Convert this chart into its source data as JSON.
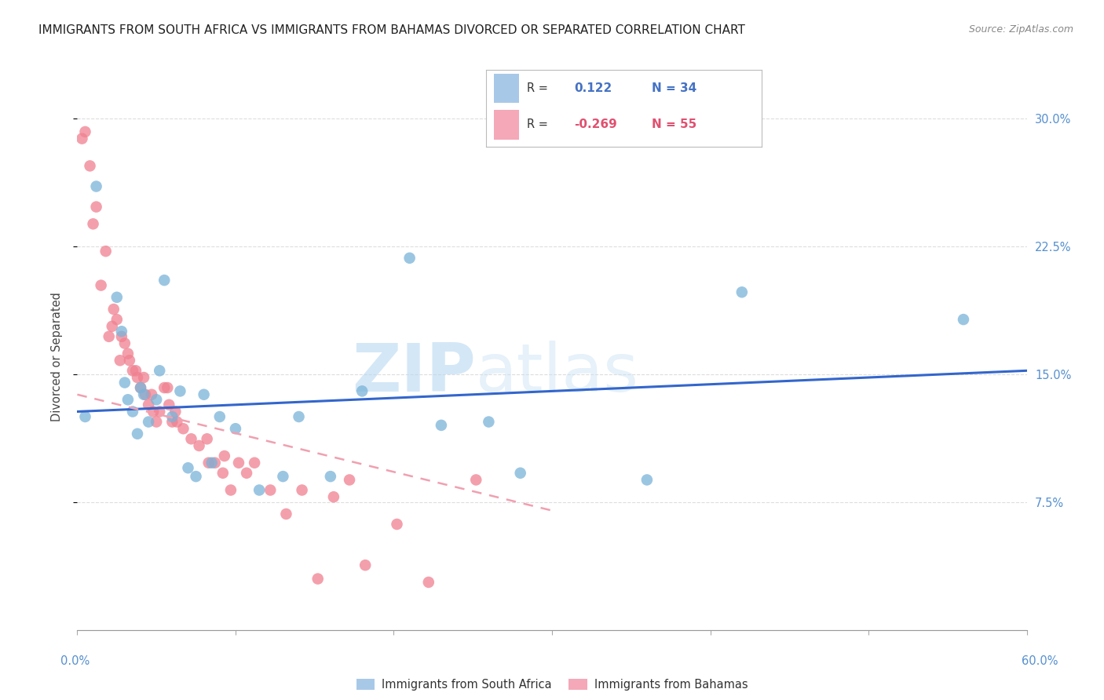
{
  "title": "IMMIGRANTS FROM SOUTH AFRICA VS IMMIGRANTS FROM BAHAMAS DIVORCED OR SEPARATED CORRELATION CHART",
  "source": "Source: ZipAtlas.com",
  "ylabel": "Divorced or Separated",
  "south_africa_color": "#7ab3d9",
  "bahamas_color": "#f08090",
  "south_africa_scatter": [
    [
      0.5,
      12.5
    ],
    [
      1.2,
      26.0
    ],
    [
      2.5,
      19.5
    ],
    [
      2.8,
      17.5
    ],
    [
      3.0,
      14.5
    ],
    [
      3.2,
      13.5
    ],
    [
      3.5,
      12.8
    ],
    [
      3.8,
      11.5
    ],
    [
      4.0,
      14.2
    ],
    [
      4.2,
      13.8
    ],
    [
      4.5,
      12.2
    ],
    [
      5.0,
      13.5
    ],
    [
      5.2,
      15.2
    ],
    [
      5.5,
      20.5
    ],
    [
      6.0,
      12.5
    ],
    [
      6.5,
      14.0
    ],
    [
      7.0,
      9.5
    ],
    [
      7.5,
      9.0
    ],
    [
      8.0,
      13.8
    ],
    [
      8.5,
      9.8
    ],
    [
      9.0,
      12.5
    ],
    [
      10.0,
      11.8
    ],
    [
      11.5,
      8.2
    ],
    [
      13.0,
      9.0
    ],
    [
      14.0,
      12.5
    ],
    [
      16.0,
      9.0
    ],
    [
      18.0,
      14.0
    ],
    [
      21.0,
      21.8
    ],
    [
      23.0,
      12.0
    ],
    [
      26.0,
      12.2
    ],
    [
      28.0,
      9.2
    ],
    [
      36.0,
      8.8
    ],
    [
      42.0,
      19.8
    ],
    [
      56.0,
      18.2
    ]
  ],
  "bahamas_scatter": [
    [
      0.3,
      28.8
    ],
    [
      0.5,
      29.2
    ],
    [
      0.8,
      27.2
    ],
    [
      1.0,
      23.8
    ],
    [
      1.2,
      24.8
    ],
    [
      1.5,
      20.2
    ],
    [
      1.8,
      22.2
    ],
    [
      2.0,
      17.2
    ],
    [
      2.2,
      17.8
    ],
    [
      2.3,
      18.8
    ],
    [
      2.5,
      18.2
    ],
    [
      2.7,
      15.8
    ],
    [
      2.8,
      17.2
    ],
    [
      3.0,
      16.8
    ],
    [
      3.2,
      16.2
    ],
    [
      3.3,
      15.8
    ],
    [
      3.5,
      15.2
    ],
    [
      3.7,
      15.2
    ],
    [
      3.8,
      14.8
    ],
    [
      4.0,
      14.2
    ],
    [
      4.2,
      14.8
    ],
    [
      4.3,
      13.8
    ],
    [
      4.5,
      13.2
    ],
    [
      4.7,
      13.8
    ],
    [
      4.8,
      12.8
    ],
    [
      5.0,
      12.2
    ],
    [
      5.2,
      12.8
    ],
    [
      5.5,
      14.2
    ],
    [
      5.7,
      14.2
    ],
    [
      5.8,
      13.2
    ],
    [
      6.0,
      12.2
    ],
    [
      6.2,
      12.8
    ],
    [
      6.3,
      12.2
    ],
    [
      6.7,
      11.8
    ],
    [
      7.2,
      11.2
    ],
    [
      7.7,
      10.8
    ],
    [
      8.2,
      11.2
    ],
    [
      8.3,
      9.8
    ],
    [
      8.7,
      9.8
    ],
    [
      9.2,
      9.2
    ],
    [
      9.3,
      10.2
    ],
    [
      9.7,
      8.2
    ],
    [
      10.2,
      9.8
    ],
    [
      10.7,
      9.2
    ],
    [
      11.2,
      9.8
    ],
    [
      12.2,
      8.2
    ],
    [
      13.2,
      6.8
    ],
    [
      14.2,
      8.2
    ],
    [
      15.2,
      3.0
    ],
    [
      16.2,
      7.8
    ],
    [
      17.2,
      8.8
    ],
    [
      18.2,
      3.8
    ],
    [
      20.2,
      6.2
    ],
    [
      22.2,
      2.8
    ],
    [
      25.2,
      8.8
    ]
  ],
  "sa_trendline": {
    "x_start": 0,
    "x_end": 60,
    "y_start": 12.8,
    "y_end": 15.2
  },
  "bah_trendline": {
    "x_start": 0,
    "x_end": 30,
    "y_start": 13.8,
    "y_end": 7.0
  },
  "watermark_zip": "ZIP",
  "watermark_atlas": "atlas",
  "xlim": [
    0,
    60
  ],
  "ylim": [
    0,
    32
  ],
  "ytick_positions": [
    7.5,
    15.0,
    22.5,
    30.0
  ],
  "xtick_positions": [
    0,
    10,
    20,
    30,
    40,
    50,
    60
  ],
  "background_color": "#ffffff",
  "grid_color": "#dddddd",
  "legend1_R": "0.122",
  "legend1_N": "34",
  "legend2_R": "-0.269",
  "legend2_N": "55",
  "sa_legend_color": "#a8c8e8",
  "bah_legend_color": "#f4a8b8",
  "sa_R_color": "#4472c4",
  "bah_R_color": "#e05070",
  "sa_N_color": "#4472c4",
  "bah_N_color": "#e05070",
  "right_tick_color": "#5590d0"
}
